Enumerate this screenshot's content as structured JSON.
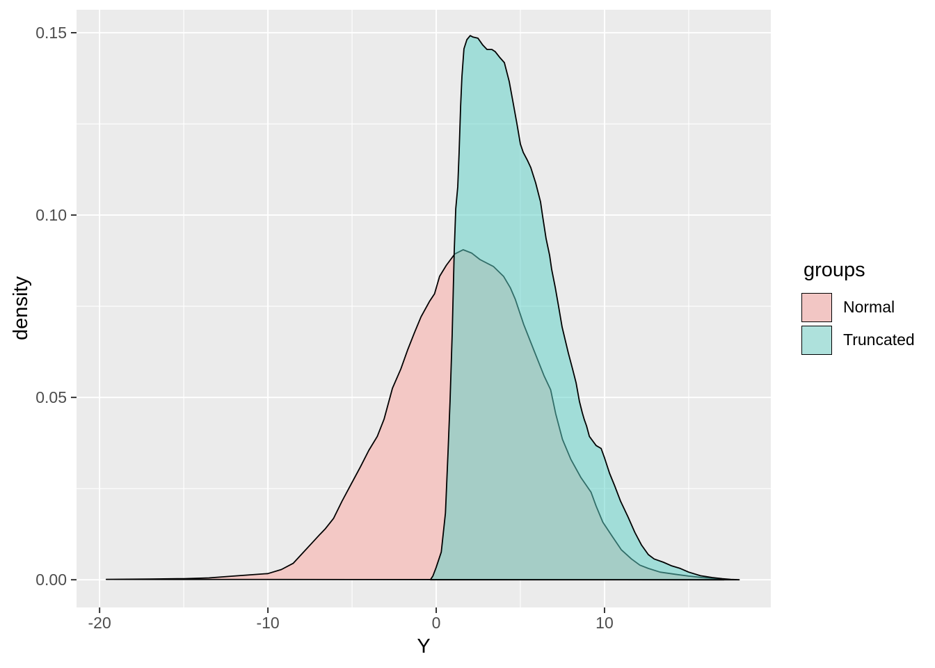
{
  "figure": {
    "background": "#FFFFFF"
  },
  "panel": {
    "background": "#EBEBEB",
    "grid_major_color": "#FFFFFF",
    "grid_minor_color": "#FFFFFF"
  },
  "axes": {
    "tick_color": "#333333",
    "tick_label_color": "#4D4D4D",
    "x_title": "Y",
    "y_title": "density"
  },
  "legend": {
    "title": "groups",
    "position": "right",
    "items": [
      {
        "label": "Normal",
        "swatch_color": "#F2C6C4"
      },
      {
        "label": "Truncated",
        "swatch_color": "#AEE1DC"
      }
    ]
  },
  "chart_data": {
    "type": "area",
    "title": "",
    "xlabel": "Y",
    "ylabel": "density",
    "legend_title": "groups",
    "legend_position": "right",
    "grid": "on",
    "xlim": [
      -21.37,
      19.88
    ],
    "ylim": [
      -0.0076,
      0.1563
    ],
    "x_ticks": [
      -20,
      -10,
      0,
      10
    ],
    "x_tick_labels": [
      "-20",
      "-10",
      "0",
      "10"
    ],
    "x_minor": [
      -15,
      -5,
      5,
      15
    ],
    "y_ticks": [
      0.0,
      0.05,
      0.1,
      0.15
    ],
    "y_tick_labels": [
      "0.00",
      "0.05",
      "0.10",
      "0.15"
    ],
    "y_minor": [
      0.025,
      0.075,
      0.125
    ],
    "series": [
      {
        "name": "Normal",
        "fill": "#F3C8C5",
        "stroke": "#000000",
        "points": [
          [
            -19.6,
            0.0001
          ],
          [
            -17.0,
            0.0002
          ],
          [
            -15.0,
            0.0003
          ],
          [
            -13.5,
            0.0005
          ],
          [
            -12.4,
            0.0009
          ],
          [
            -11.2,
            0.0013
          ],
          [
            -10.0,
            0.0017
          ],
          [
            -9.2,
            0.0028
          ],
          [
            -8.5,
            0.0045
          ],
          [
            -8.0,
            0.007
          ],
          [
            -7.4,
            0.01
          ],
          [
            -6.9,
            0.0125
          ],
          [
            -6.6,
            0.0139
          ],
          [
            -6.1,
            0.0168
          ],
          [
            -5.6,
            0.0215
          ],
          [
            -5.0,
            0.0267
          ],
          [
            -4.5,
            0.031
          ],
          [
            -4.0,
            0.0355
          ],
          [
            -3.5,
            0.0393
          ],
          [
            -3.1,
            0.044
          ],
          [
            -2.6,
            0.0525
          ],
          [
            -2.1,
            0.0578
          ],
          [
            -1.7,
            0.063
          ],
          [
            -1.3,
            0.0677
          ],
          [
            -0.9,
            0.0721
          ],
          [
            -0.4,
            0.0763
          ],
          [
            -0.1,
            0.0784
          ],
          [
            0.2,
            0.0832
          ],
          [
            0.6,
            0.0862
          ],
          [
            1.1,
            0.0893
          ],
          [
            1.6,
            0.0905
          ],
          [
            2.1,
            0.0896
          ],
          [
            2.6,
            0.0878
          ],
          [
            3.4,
            0.0859
          ],
          [
            4.0,
            0.0832
          ],
          [
            4.4,
            0.0801
          ],
          [
            4.7,
            0.0769
          ],
          [
            5.2,
            0.07
          ],
          [
            5.8,
            0.063
          ],
          [
            6.4,
            0.056
          ],
          [
            6.8,
            0.0521
          ],
          [
            7.1,
            0.0455
          ],
          [
            7.5,
            0.0385
          ],
          [
            8.0,
            0.033
          ],
          [
            8.6,
            0.028
          ],
          [
            9.2,
            0.024
          ],
          [
            9.5,
            0.0202
          ],
          [
            9.9,
            0.0158
          ],
          [
            10.5,
            0.0116
          ],
          [
            11.0,
            0.0082
          ],
          [
            11.6,
            0.0057
          ],
          [
            12.1,
            0.004
          ],
          [
            12.6,
            0.0031
          ],
          [
            13.3,
            0.0021
          ],
          [
            14.2,
            0.0015
          ],
          [
            15.0,
            0.001
          ],
          [
            15.8,
            0.0006
          ],
          [
            16.7,
            0.0003
          ],
          [
            17.1,
            0.0
          ]
        ]
      },
      {
        "name": "Truncated",
        "fill": "rgba(93,209,199,0.52)",
        "stroke": "#000000",
        "points": [
          [
            -0.35,
            0.0
          ],
          [
            -0.2,
            0.001
          ],
          [
            0.0,
            0.0034
          ],
          [
            0.3,
            0.0076
          ],
          [
            0.55,
            0.0183
          ],
          [
            0.7,
            0.0349
          ],
          [
            0.82,
            0.0489
          ],
          [
            0.95,
            0.0674
          ],
          [
            1.07,
            0.0899
          ],
          [
            1.16,
            0.1017
          ],
          [
            1.28,
            0.1078
          ],
          [
            1.36,
            0.117
          ],
          [
            1.45,
            0.1298
          ],
          [
            1.53,
            0.138
          ],
          [
            1.65,
            0.1456
          ],
          [
            1.82,
            0.1481
          ],
          [
            2.02,
            0.1492
          ],
          [
            2.19,
            0.1488
          ],
          [
            2.48,
            0.1485
          ],
          [
            2.77,
            0.1466
          ],
          [
            3.02,
            0.1454
          ],
          [
            3.31,
            0.1454
          ],
          [
            3.51,
            0.1448
          ],
          [
            3.76,
            0.1433
          ],
          [
            4.05,
            0.1418
          ],
          [
            4.34,
            0.1366
          ],
          [
            4.55,
            0.1313
          ],
          [
            4.79,
            0.1252
          ],
          [
            5.0,
            0.1195
          ],
          [
            5.17,
            0.1172
          ],
          [
            5.41,
            0.1151
          ],
          [
            5.62,
            0.113
          ],
          [
            5.91,
            0.1088
          ],
          [
            6.2,
            0.1036
          ],
          [
            6.32,
            0.0998
          ],
          [
            6.53,
            0.0935
          ],
          [
            6.74,
            0.0889
          ],
          [
            6.86,
            0.0851
          ],
          [
            7.07,
            0.0802
          ],
          [
            7.27,
            0.075
          ],
          [
            7.48,
            0.0693
          ],
          [
            7.85,
            0.0622
          ],
          [
            8.1,
            0.0578
          ],
          [
            8.31,
            0.054
          ],
          [
            8.51,
            0.0489
          ],
          [
            8.68,
            0.0458
          ],
          [
            8.8,
            0.0439
          ],
          [
            8.93,
            0.0422
          ],
          [
            9.1,
            0.0393
          ],
          [
            9.5,
            0.0368
          ],
          [
            9.8,
            0.036
          ],
          [
            10.0,
            0.0334
          ],
          [
            10.3,
            0.0292
          ],
          [
            10.6,
            0.0258
          ],
          [
            10.95,
            0.0216
          ],
          [
            11.4,
            0.0172
          ],
          [
            11.8,
            0.013
          ],
          [
            12.2,
            0.0095
          ],
          [
            12.6,
            0.0069
          ],
          [
            12.95,
            0.0057
          ],
          [
            13.5,
            0.0048
          ],
          [
            14.0,
            0.0038
          ],
          [
            14.5,
            0.0031
          ],
          [
            15.0,
            0.0021
          ],
          [
            15.7,
            0.0011
          ],
          [
            16.4,
            0.0006
          ],
          [
            17.0,
            0.0003
          ],
          [
            17.5,
            0.0001
          ],
          [
            18.0,
            0.0
          ]
        ]
      }
    ]
  }
}
